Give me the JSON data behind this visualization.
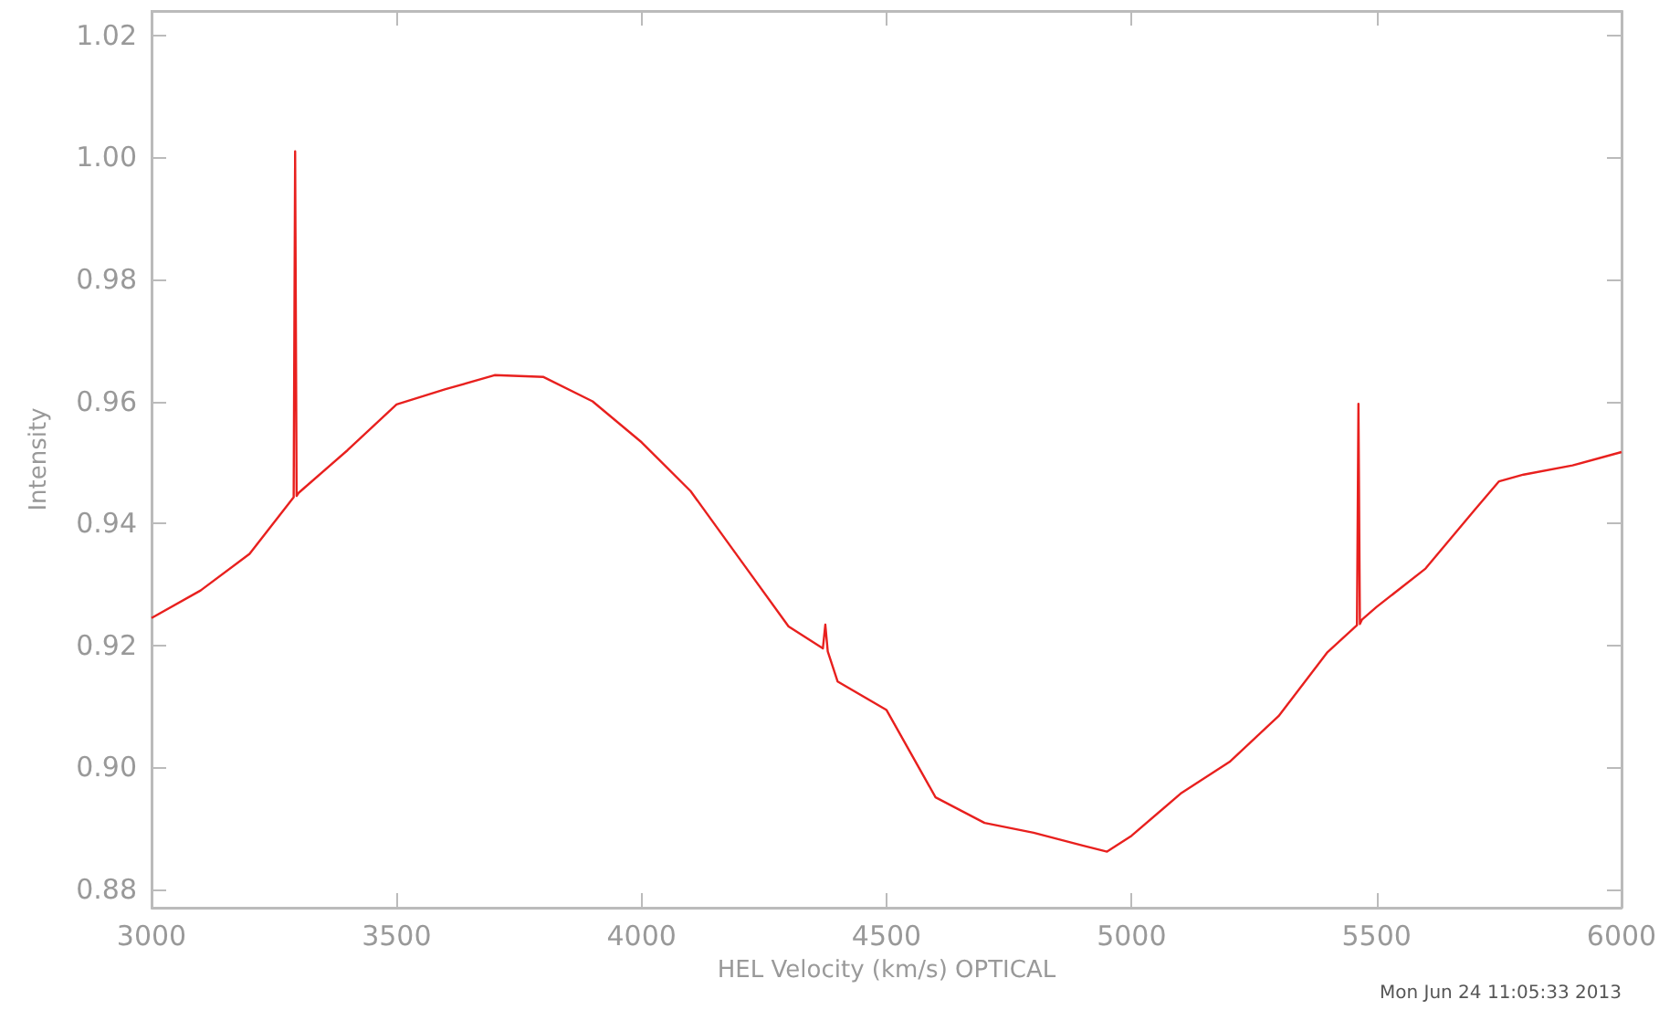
{
  "chart_data": {
    "type": "line",
    "xlabel": "HEL Velocity (km/s) OPTICAL",
    "ylabel": "Intensity",
    "annotations": [
      "Mon Jun 24 11:05:33 2013"
    ],
    "series": [
      {
        "color": "#e8201e",
        "x": [
          3000,
          3100,
          3200,
          3290,
          3293,
          3296,
          3300,
          3400,
          3500,
          3600,
          3700,
          3800,
          3900,
          4000,
          4100,
          4200,
          4300,
          4370,
          4375,
          4380,
          4400,
          4500,
          4600,
          4700,
          4800,
          4900,
          4950,
          5000,
          5100,
          5200,
          5300,
          5400,
          5460,
          5463,
          5466,
          5470,
          5500,
          5600,
          5700,
          5750,
          5800,
          5900,
          6000
        ],
        "values": [
          0.9245,
          0.929,
          0.935,
          0.9443,
          1.001,
          0.9445,
          0.945,
          0.952,
          0.9595,
          0.962,
          0.9643,
          0.964,
          0.96,
          0.9533,
          0.9453,
          0.9342,
          0.9231,
          0.9195,
          0.9234,
          0.919,
          0.9141,
          0.9094,
          0.8951,
          0.8909,
          0.8893,
          0.8872,
          0.8862,
          0.8888,
          0.8957,
          0.9009,
          0.9084,
          0.9189,
          0.9233,
          0.9596,
          0.9235,
          0.9242,
          0.9263,
          0.9326,
          0.9422,
          0.9469,
          0.948,
          0.9495,
          0.9517
        ]
      }
    ],
    "xlim": [
      3000,
      6000
    ],
    "xticks": [
      3000,
      3500,
      4000,
      4500,
      5000,
      5500,
      6000
    ],
    "ylim": [
      0.877,
      1.024
    ],
    "yticks": [
      0.88,
      {
        "value": 0.9,
        "label": "0.90"
      },
      0.92,
      0.94,
      0.96,
      0.98,
      {
        "value": 1,
        "label": "1.00"
      },
      1.02
    ],
    "grid": false,
    "marker": "none",
    "line_style": "solid"
  }
}
